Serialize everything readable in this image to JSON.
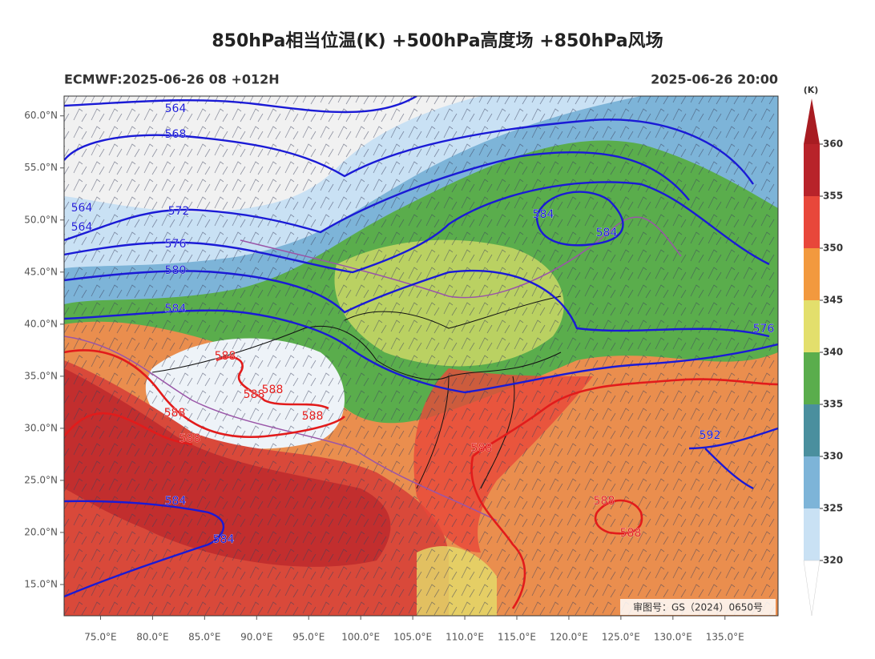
{
  "title": "850hPa相当位温(K) +500hPa高度场 +850hPa风场",
  "model_run": "ECMWF:2025-06-26 08 +012H",
  "valid_time": "2025-06-26 20:00",
  "map": {
    "lon_range": [
      71.5,
      140.1
    ],
    "lat_range": [
      12,
      61.9
    ],
    "lon_ticks": [
      {
        "value": 75,
        "label": "75.0°E"
      },
      {
        "value": 80,
        "label": "80.0°E"
      },
      {
        "value": 85,
        "label": "85.0°E"
      },
      {
        "value": 90,
        "label": "90.0°E"
      },
      {
        "value": 95,
        "label": "95.0°E"
      },
      {
        "value": 100,
        "label": "100.0°E"
      },
      {
        "value": 105,
        "label": "105.0°E"
      },
      {
        "value": 110,
        "label": "110.0°E"
      },
      {
        "value": 115,
        "label": "115.0°E"
      },
      {
        "value": 120,
        "label": "120.0°E"
      },
      {
        "value": 125,
        "label": "125.0°E"
      },
      {
        "value": 130,
        "label": "130.0°E"
      },
      {
        "value": 135,
        "label": "135.0°E"
      }
    ],
    "lat_ticks": [
      {
        "value": 15,
        "label": "15.0°N"
      },
      {
        "value": 20,
        "label": "20.0°N"
      },
      {
        "value": 25,
        "label": "25.0°N"
      },
      {
        "value": 30,
        "label": "30.0°N"
      },
      {
        "value": 35,
        "label": "35.0°N"
      },
      {
        "value": 40,
        "label": "40.0°N"
      },
      {
        "value": 45,
        "label": "45.0°N"
      },
      {
        "value": 50,
        "label": "50.0°N"
      },
      {
        "value": 55,
        "label": "55.0°N"
      },
      {
        "value": 60,
        "label": "60.0°N"
      }
    ]
  },
  "colorbar": {
    "unit": "(K)",
    "range": [
      315,
      365
    ],
    "ticks": [
      320,
      325,
      330,
      335,
      340,
      345,
      350,
      355,
      360
    ],
    "band_colors": [
      "#c9e1f4",
      "#7db4d8",
      "#4a8f9e",
      "#5aad4c",
      "#e3df6c",
      "#f2993e",
      "#e8473a",
      "#b8232a"
    ],
    "over_color": "#a81c22",
    "under_color": "#ffffff"
  },
  "contour_labels": [
    {
      "text": "564",
      "color": "#1a1ad6"
    },
    {
      "text": "568",
      "color": "#1a1ad6"
    },
    {
      "text": "572",
      "color": "#1a1ad6"
    },
    {
      "text": "576",
      "color": "#1a1ad6"
    },
    {
      "text": "580",
      "color": "#1a1ad6"
    },
    {
      "text": "584",
      "color": "#1a1ad6"
    },
    {
      "text": "564",
      "color": "#1a1ad6"
    },
    {
      "text": "564",
      "color": "#1a1ad6"
    },
    {
      "text": "584",
      "color": "#1a1ad6"
    },
    {
      "text": "584",
      "color": "#1a1ad6"
    },
    {
      "text": "576",
      "color": "#1a1ad6"
    },
    {
      "text": "592",
      "color": "#1a1ad6"
    },
    {
      "text": "584",
      "color": "#1a1ad6"
    },
    {
      "text": "584",
      "color": "#1a1ad6"
    },
    {
      "text": "588",
      "color": "#e21b1b"
    },
    {
      "text": "588",
      "color": "#e21b1b"
    },
    {
      "text": "588",
      "color": "#e21b1b"
    },
    {
      "text": "588",
      "color": "#e21b1b"
    },
    {
      "text": "588",
      "color": "#e21b1b"
    },
    {
      "text": "588",
      "color": "#e21b1b"
    },
    {
      "text": "588",
      "color": "#e21b1b"
    },
    {
      "text": "588",
      "color": "#e21b1b"
    },
    {
      "text": "588",
      "color": "#e21b1b"
    }
  ],
  "watermark": "审图号：GS（2024）0650号"
}
